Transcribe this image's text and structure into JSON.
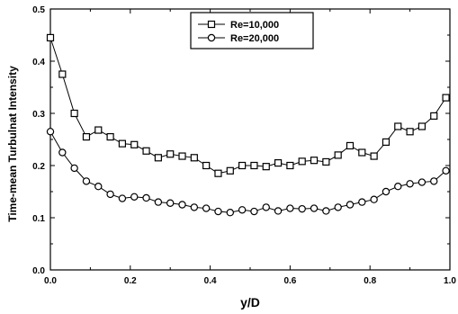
{
  "chart_data": {
    "type": "line",
    "xlabel": "y/D",
    "ylabel": "Time-mean Turbulnat Intensity",
    "xlim": [
      0.0,
      1.0
    ],
    "ylim": [
      0.0,
      0.5
    ],
    "x_ticks": [
      "0.0",
      "0.2",
      "0.4",
      "0.6",
      "0.8",
      "1.0"
    ],
    "y_ticks": [
      "0.0",
      "0.1",
      "0.2",
      "0.3",
      "0.4",
      "0.5"
    ],
    "grid": false,
    "legend_position": "top-center",
    "series": [
      {
        "name": "Re=10,000",
        "marker": "square",
        "color": "#000000",
        "x": [
          0.0,
          0.03,
          0.06,
          0.09,
          0.12,
          0.15,
          0.18,
          0.21,
          0.24,
          0.27,
          0.3,
          0.33,
          0.36,
          0.39,
          0.42,
          0.45,
          0.48,
          0.51,
          0.54,
          0.57,
          0.6,
          0.63,
          0.66,
          0.69,
          0.72,
          0.75,
          0.78,
          0.81,
          0.84,
          0.87,
          0.9,
          0.93,
          0.96,
          0.99
        ],
        "values": [
          0.445,
          0.375,
          0.3,
          0.255,
          0.268,
          0.255,
          0.242,
          0.24,
          0.228,
          0.215,
          0.222,
          0.218,
          0.215,
          0.2,
          0.185,
          0.19,
          0.2,
          0.2,
          0.198,
          0.205,
          0.2,
          0.208,
          0.21,
          0.207,
          0.22,
          0.238,
          0.225,
          0.218,
          0.245,
          0.275,
          0.265,
          0.275,
          0.295,
          0.33
        ]
      },
      {
        "name": "Re=20,000",
        "marker": "circle",
        "color": "#000000",
        "x": [
          0.0,
          0.03,
          0.06,
          0.09,
          0.12,
          0.15,
          0.18,
          0.21,
          0.24,
          0.27,
          0.3,
          0.33,
          0.36,
          0.39,
          0.42,
          0.45,
          0.48,
          0.51,
          0.54,
          0.57,
          0.6,
          0.63,
          0.66,
          0.69,
          0.72,
          0.75,
          0.78,
          0.81,
          0.84,
          0.87,
          0.9,
          0.93,
          0.96,
          0.99
        ],
        "values": [
          0.265,
          0.225,
          0.195,
          0.17,
          0.16,
          0.145,
          0.137,
          0.14,
          0.138,
          0.13,
          0.128,
          0.125,
          0.12,
          0.118,
          0.112,
          0.11,
          0.115,
          0.112,
          0.12,
          0.113,
          0.118,
          0.117,
          0.118,
          0.113,
          0.12,
          0.125,
          0.13,
          0.135,
          0.15,
          0.16,
          0.165,
          0.168,
          0.17,
          0.19
        ]
      }
    ]
  }
}
